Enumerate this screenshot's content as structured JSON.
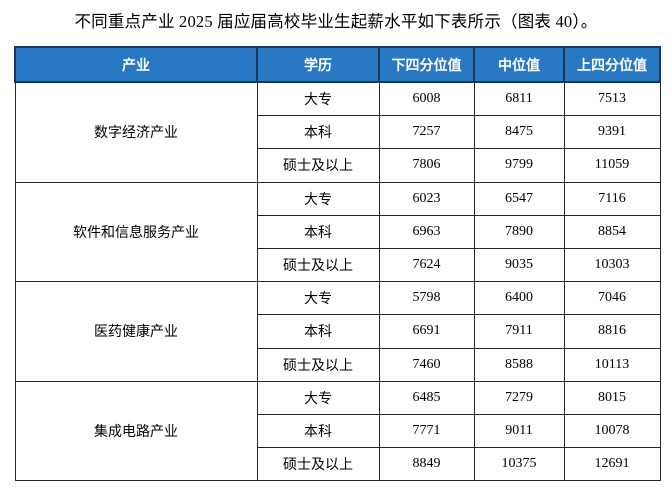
{
  "title": "不同重点产业 2025 届应届高校毕业生起薪水平如下表所示（图表 40）。",
  "colors": {
    "header_bg": "#2878C4",
    "header_text": "#FFFFFF",
    "header_border": "#17365D",
    "body_border": "#262626"
  },
  "table": {
    "headers": [
      "产业",
      "学历",
      "下四分位值",
      "中位值",
      "上四分位值"
    ],
    "groups": [
      {
        "industry": "数字经济产业",
        "rows": [
          {
            "degree": "大专",
            "p25": "6008",
            "median": "6811",
            "p75": "7513"
          },
          {
            "degree": "本科",
            "p25": "7257",
            "median": "8475",
            "p75": "9391"
          },
          {
            "degree": "硕士及以上",
            "p25": "7806",
            "median": "9799",
            "p75": "11059"
          }
        ]
      },
      {
        "industry": "软件和信息服务产业",
        "rows": [
          {
            "degree": "大专",
            "p25": "6023",
            "median": "6547",
            "p75": "7116"
          },
          {
            "degree": "本科",
            "p25": "6963",
            "median": "7890",
            "p75": "8854"
          },
          {
            "degree": "硕士及以上",
            "p25": "7624",
            "median": "9035",
            "p75": "10303"
          }
        ]
      },
      {
        "industry": "医药健康产业",
        "rows": [
          {
            "degree": "大专",
            "p25": "5798",
            "median": "6400",
            "p75": "7046"
          },
          {
            "degree": "本科",
            "p25": "6691",
            "median": "7911",
            "p75": "8816"
          },
          {
            "degree": "硕士及以上",
            "p25": "7460",
            "median": "8588",
            "p75": "10113"
          }
        ]
      },
      {
        "industry": "集成电路产业",
        "rows": [
          {
            "degree": "大专",
            "p25": "6485",
            "median": "7279",
            "p75": "8015"
          },
          {
            "degree": "本科",
            "p25": "7771",
            "median": "9011",
            "p75": "10078"
          },
          {
            "degree": "硕士及以上",
            "p25": "8849",
            "median": "10375",
            "p75": "12691"
          }
        ]
      }
    ]
  }
}
